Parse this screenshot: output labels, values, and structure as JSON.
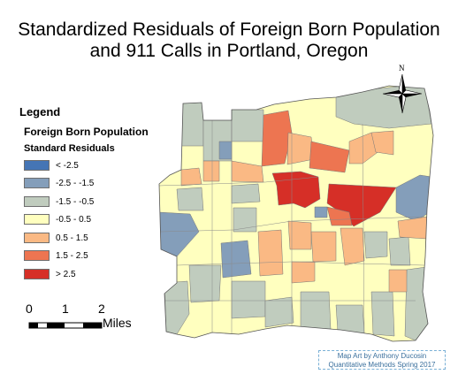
{
  "title_line1": "Standardized Residuals of Foreign Born Population",
  "title_line2": "and 911 Calls in Portland, Oregon",
  "legend": {
    "title": "Legend",
    "layer": "Foreign Born Population",
    "field": "Standard Residuals",
    "classes": [
      {
        "label": "< -2.5",
        "color": "#4575b5"
      },
      {
        "label": "-2.5 - -1.5",
        "color": "#849eba"
      },
      {
        "label": "-1.5 - -0.5",
        "color": "#c0ccbe"
      },
      {
        "label": "-0.5 - 0.5",
        "color": "#ffffbf"
      },
      {
        "label": "0.5 - 1.5",
        "color": "#fab984"
      },
      {
        "label": "1.5 - 2.5",
        "color": "#ed7551"
      },
      {
        "label": "> 2.5",
        "color": "#d62f27"
      }
    ]
  },
  "scale_bar": {
    "ticks": [
      "0",
      "1",
      "2"
    ],
    "units": "Miles"
  },
  "north_arrow": {
    "label": "N",
    "icon": "north-arrow-icon"
  },
  "credit": {
    "line1": "Map Art by Anthony Ducosin",
    "line2": "Quantitative Methods Spring 2017"
  }
}
